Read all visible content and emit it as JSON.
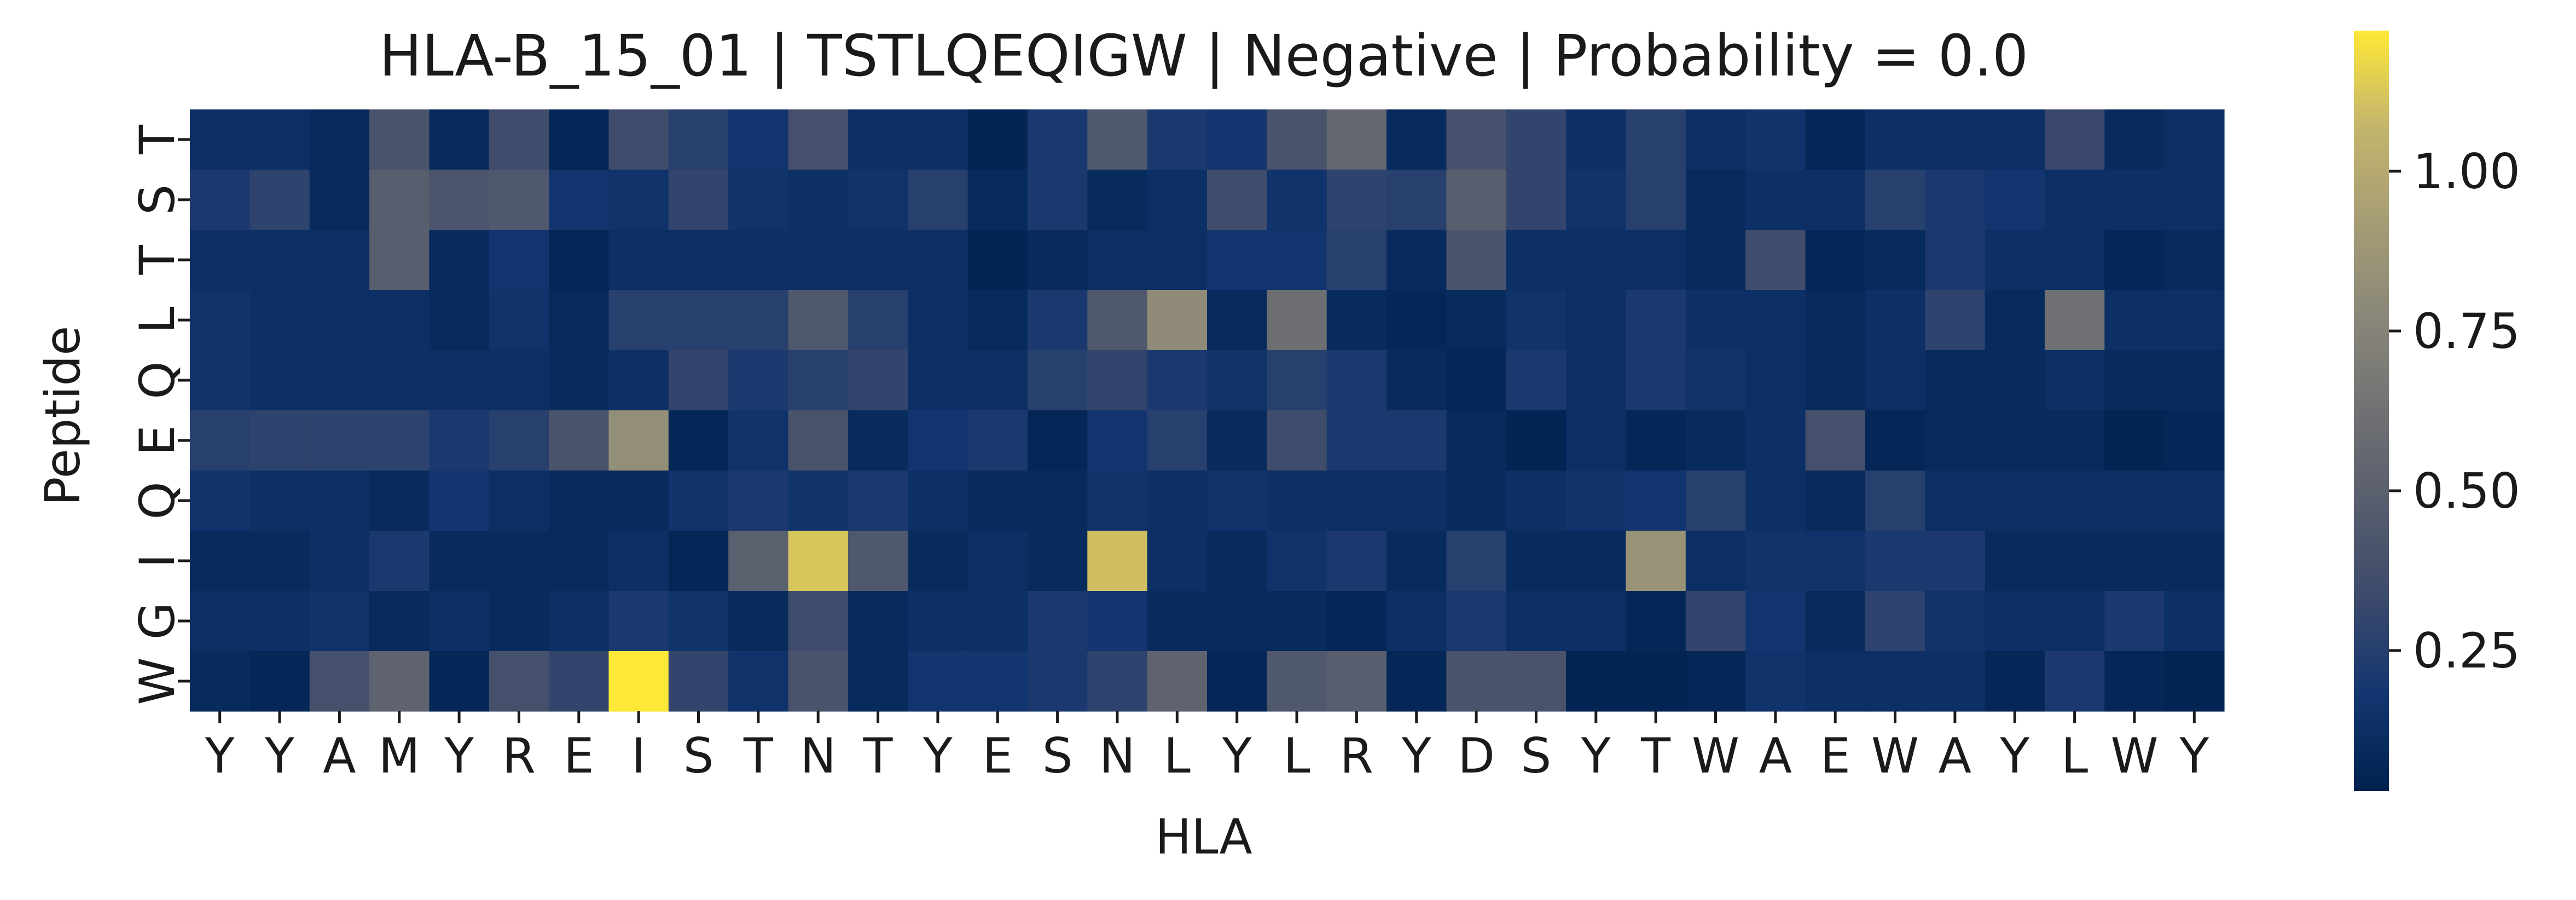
{
  "chart_data": {
    "type": "heatmap",
    "title": "HLA-B_15_01 | TSTLQEQIGW | Negative | Probability = 0.0",
    "xlabel": "HLA",
    "ylabel": "Peptide",
    "x_tick_labels": [
      "Y",
      "Y",
      "A",
      "M",
      "Y",
      "R",
      "E",
      "I",
      "S",
      "T",
      "N",
      "T",
      "Y",
      "E",
      "S",
      "N",
      "L",
      "Y",
      "L",
      "R",
      "Y",
      "D",
      "S",
      "Y",
      "T",
      "W",
      "A",
      "E",
      "W",
      "A",
      "Y",
      "L",
      "W",
      "Y"
    ],
    "y_tick_labels": [
      "T",
      "S",
      "T",
      "L",
      "Q",
      "E",
      "Q",
      "I",
      "G",
      "W"
    ],
    "colormap": "cividis",
    "colorbar": {
      "range": [
        0.03,
        1.22
      ],
      "ticks": [
        0.25,
        0.5,
        0.75,
        1.0
      ],
      "tick_labels": [
        "0.25",
        "0.50",
        "0.75",
        "1.00"
      ]
    },
    "values": [
      [
        0.13,
        0.13,
        0.1,
        0.4,
        0.1,
        0.35,
        0.07,
        0.35,
        0.26,
        0.18,
        0.38,
        0.13,
        0.13,
        0.05,
        0.21,
        0.44,
        0.21,
        0.18,
        0.4,
        0.55,
        0.1,
        0.38,
        0.3,
        0.13,
        0.26,
        0.13,
        0.16,
        0.07,
        0.13,
        0.13,
        0.13,
        0.32,
        0.1,
        0.13
      ],
      [
        0.21,
        0.28,
        0.1,
        0.48,
        0.42,
        0.44,
        0.18,
        0.16,
        0.3,
        0.16,
        0.13,
        0.16,
        0.26,
        0.1,
        0.21,
        0.1,
        0.13,
        0.35,
        0.16,
        0.28,
        0.26,
        0.48,
        0.3,
        0.16,
        0.26,
        0.1,
        0.13,
        0.13,
        0.26,
        0.21,
        0.18,
        0.13,
        0.13,
        0.13
      ],
      [
        0.13,
        0.13,
        0.13,
        0.48,
        0.1,
        0.18,
        0.07,
        0.13,
        0.13,
        0.13,
        0.13,
        0.13,
        0.13,
        0.05,
        0.1,
        0.13,
        0.13,
        0.18,
        0.18,
        0.26,
        0.1,
        0.4,
        0.13,
        0.13,
        0.13,
        0.1,
        0.35,
        0.07,
        0.1,
        0.21,
        0.13,
        0.13,
        0.07,
        0.1
      ],
      [
        0.16,
        0.13,
        0.13,
        0.13,
        0.1,
        0.16,
        0.1,
        0.26,
        0.26,
        0.26,
        0.44,
        0.26,
        0.13,
        0.1,
        0.21,
        0.44,
        0.8,
        0.1,
        0.6,
        0.1,
        0.07,
        0.1,
        0.16,
        0.13,
        0.21,
        0.13,
        0.13,
        0.1,
        0.13,
        0.28,
        0.1,
        0.62,
        0.13,
        0.13
      ],
      [
        0.16,
        0.13,
        0.13,
        0.13,
        0.13,
        0.13,
        0.1,
        0.13,
        0.3,
        0.21,
        0.26,
        0.3,
        0.13,
        0.13,
        0.26,
        0.3,
        0.21,
        0.16,
        0.26,
        0.21,
        0.1,
        0.07,
        0.21,
        0.13,
        0.21,
        0.16,
        0.13,
        0.1,
        0.13,
        0.1,
        0.1,
        0.13,
        0.1,
        0.1
      ],
      [
        0.26,
        0.28,
        0.28,
        0.28,
        0.21,
        0.26,
        0.4,
        0.82,
        0.07,
        0.16,
        0.4,
        0.1,
        0.18,
        0.21,
        0.07,
        0.18,
        0.26,
        0.1,
        0.35,
        0.21,
        0.21,
        0.1,
        0.05,
        0.13,
        0.07,
        0.1,
        0.13,
        0.38,
        0.07,
        0.1,
        0.1,
        0.1,
        0.05,
        0.07
      ],
      [
        0.16,
        0.13,
        0.13,
        0.1,
        0.18,
        0.13,
        0.1,
        0.1,
        0.16,
        0.21,
        0.16,
        0.21,
        0.13,
        0.1,
        0.1,
        0.16,
        0.13,
        0.16,
        0.13,
        0.13,
        0.13,
        0.1,
        0.13,
        0.16,
        0.18,
        0.26,
        0.13,
        0.1,
        0.26,
        0.13,
        0.13,
        0.13,
        0.13,
        0.13
      ],
      [
        0.1,
        0.1,
        0.13,
        0.21,
        0.1,
        0.1,
        0.1,
        0.13,
        0.07,
        0.5,
        1.12,
        0.44,
        0.1,
        0.13,
        0.1,
        1.1,
        0.13,
        0.1,
        0.16,
        0.21,
        0.1,
        0.26,
        0.1,
        0.1,
        0.85,
        0.13,
        0.16,
        0.16,
        0.21,
        0.21,
        0.1,
        0.1,
        0.1,
        0.1
      ],
      [
        0.13,
        0.13,
        0.16,
        0.1,
        0.13,
        0.1,
        0.13,
        0.21,
        0.16,
        0.1,
        0.35,
        0.1,
        0.13,
        0.13,
        0.21,
        0.18,
        0.1,
        0.1,
        0.1,
        0.07,
        0.13,
        0.21,
        0.13,
        0.13,
        0.07,
        0.3,
        0.18,
        0.1,
        0.28,
        0.16,
        0.13,
        0.13,
        0.21,
        0.13
      ],
      [
        0.1,
        0.07,
        0.38,
        0.52,
        0.07,
        0.38,
        0.3,
        1.22,
        0.3,
        0.16,
        0.4,
        0.1,
        0.18,
        0.18,
        0.21,
        0.28,
        0.52,
        0.07,
        0.44,
        0.48,
        0.07,
        0.4,
        0.4,
        0.05,
        0.05,
        0.07,
        0.16,
        0.13,
        0.13,
        0.13,
        0.07,
        0.21,
        0.07,
        0.05
      ]
    ]
  }
}
